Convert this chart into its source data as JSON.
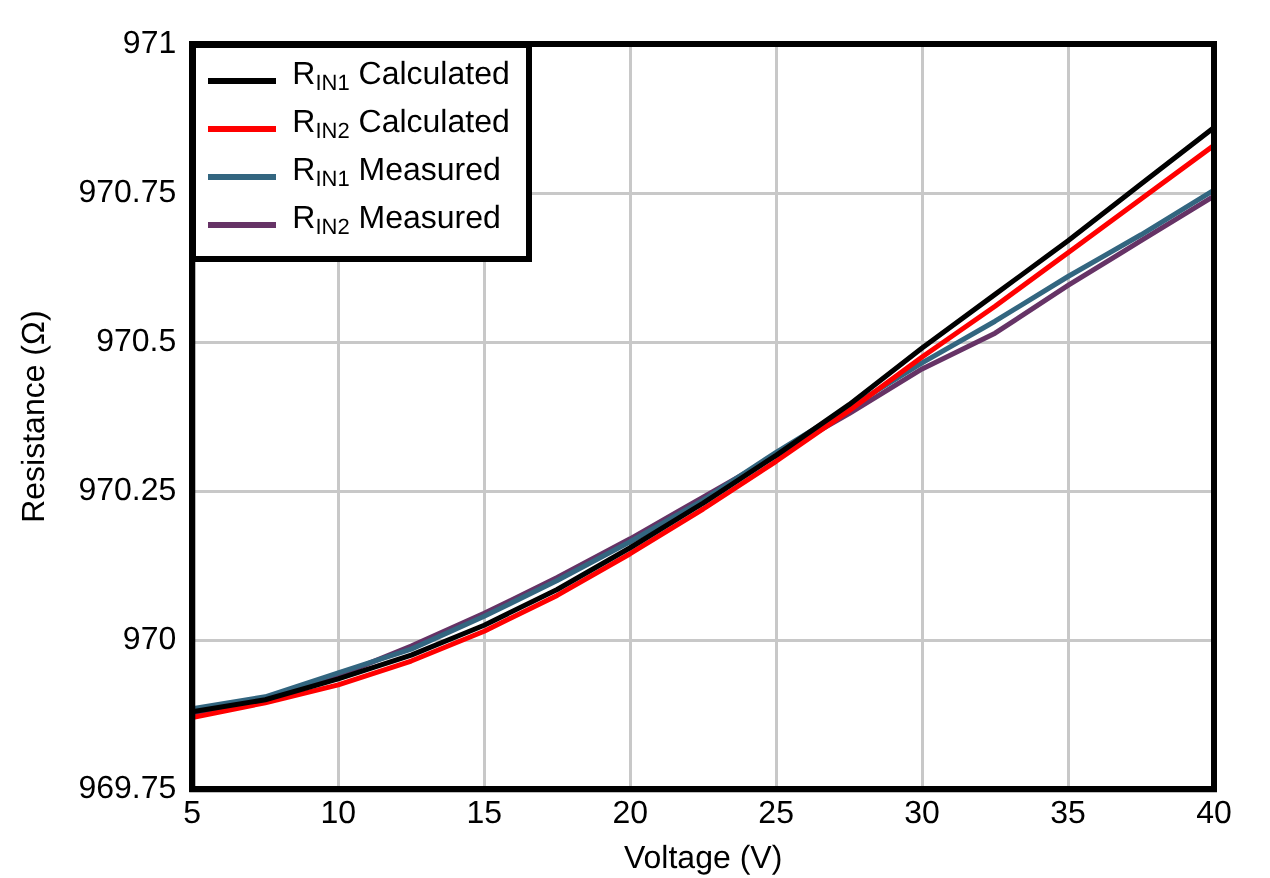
{
  "chart_data": {
    "type": "line",
    "xlabel": "Voltage (V)",
    "ylabel": "Resistance (Ω)",
    "x": [
      5,
      7.5,
      10,
      12.5,
      15,
      17.5,
      20,
      22.5,
      25,
      27.5,
      30,
      32.5,
      35,
      37.5,
      40
    ],
    "xlim": [
      5,
      40
    ],
    "xticks": [
      5,
      10,
      15,
      20,
      25,
      30,
      35,
      40
    ],
    "ylim": [
      969.75,
      971
    ],
    "yticks": [
      969.75,
      970,
      970.25,
      970.5,
      970.75,
      971
    ],
    "grid": true,
    "legend": "top left",
    "marker": "none",
    "line_style": "solid",
    "series": [
      {
        "name": "R$_{IN1}$ Calculated",
        "color": "#000000",
        "values": [
          969.88,
          969.9,
          969.935,
          969.975,
          970.025,
          970.085,
          970.155,
          970.23,
          970.31,
          970.395,
          970.49,
          970.58,
          970.67,
          970.765,
          970.86
        ]
      },
      {
        "name": "R$_{IN2}$ Calculated",
        "color": "#ff0000",
        "values": [
          969.87,
          969.895,
          969.925,
          969.965,
          970.015,
          970.075,
          970.145,
          970.22,
          970.3,
          970.385,
          970.475,
          970.56,
          970.65,
          970.74,
          970.83
        ]
      },
      {
        "name": "R$_{IN1}$ Measured",
        "color": "#336680",
        "values": [
          969.885,
          969.905,
          969.945,
          969.985,
          970.04,
          970.1,
          970.165,
          970.235,
          970.315,
          970.39,
          970.465,
          970.535,
          970.61,
          970.68,
          970.755
        ]
      },
      {
        "name": "R$_{IN2}$ Measured",
        "color": "#663366",
        "values": [
          969.875,
          969.9,
          969.94,
          969.99,
          970.045,
          970.105,
          970.17,
          970.24,
          970.31,
          970.38,
          970.455,
          970.515,
          970.595,
          970.67,
          970.745
        ]
      }
    ]
  }
}
